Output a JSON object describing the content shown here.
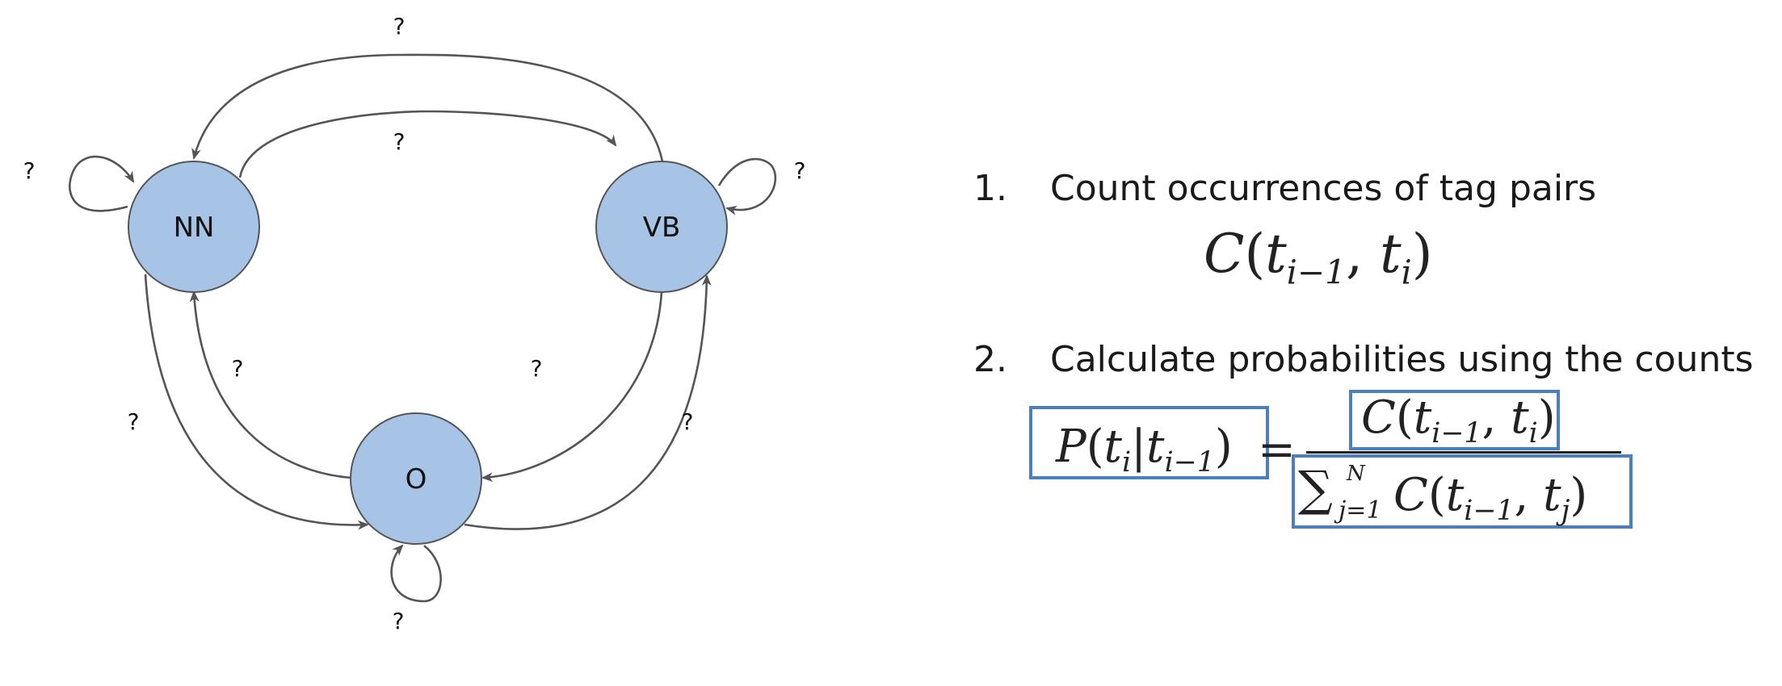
{
  "diagram": {
    "nodes": [
      {
        "id": "nn",
        "label": "NN"
      },
      {
        "id": "vb",
        "label": "VB"
      },
      {
        "id": "o",
        "label": "O"
      }
    ],
    "edge_labels": {
      "vb_to_nn": "?",
      "nn_to_vb": "?",
      "nn_self": "?",
      "vb_self": "?",
      "o_to_nn": "?",
      "vb_to_o": "?",
      "nn_to_o": "?",
      "o_to_vb": "?",
      "o_self": "?"
    },
    "colors": {
      "node_fill": "#a7c4e6",
      "node_stroke": "#555555",
      "edge": "#555555"
    }
  },
  "steps": [
    {
      "number": "1.",
      "text": "Count occurrences of tag pairs",
      "formula": "C(t_{i-1}, t_i)"
    },
    {
      "number": "2.",
      "text": "Calculate probabilities using the counts",
      "formula": "P(t_i|t_{i-1}) = C(t_{i-1}, t_i) / Σ_{j=1}^{N} C(t_{i-1}, t_j)"
    }
  ],
  "math": {
    "count": {
      "c": "C",
      "open": "(",
      "t": "t",
      "sub1": "i−1",
      "comma": ", ",
      "t2": "t",
      "sub2": "i",
      "close": ")"
    },
    "lhs": {
      "p": "P",
      "open": "(",
      "t": "t",
      "sub1": "i",
      "bar": "|",
      "t2": "t",
      "sub2": "i−1",
      "close": ")"
    },
    "equals": "=",
    "numerator": {
      "c": "C",
      "open": "(",
      "t": "t",
      "sub1": "i−1",
      "comma": ", ",
      "t2": "t",
      "sub2": "i",
      "close": ")"
    },
    "denominator": {
      "sum": "∑",
      "upper": "N",
      "lower": "j=1",
      "c": "C",
      "open": "(",
      "t": "t",
      "sub1": "i−1",
      "comma": ", ",
      "t2": "t",
      "sub2": "j",
      "close": ")"
    }
  },
  "highlight_color": "#4a7fc0"
}
